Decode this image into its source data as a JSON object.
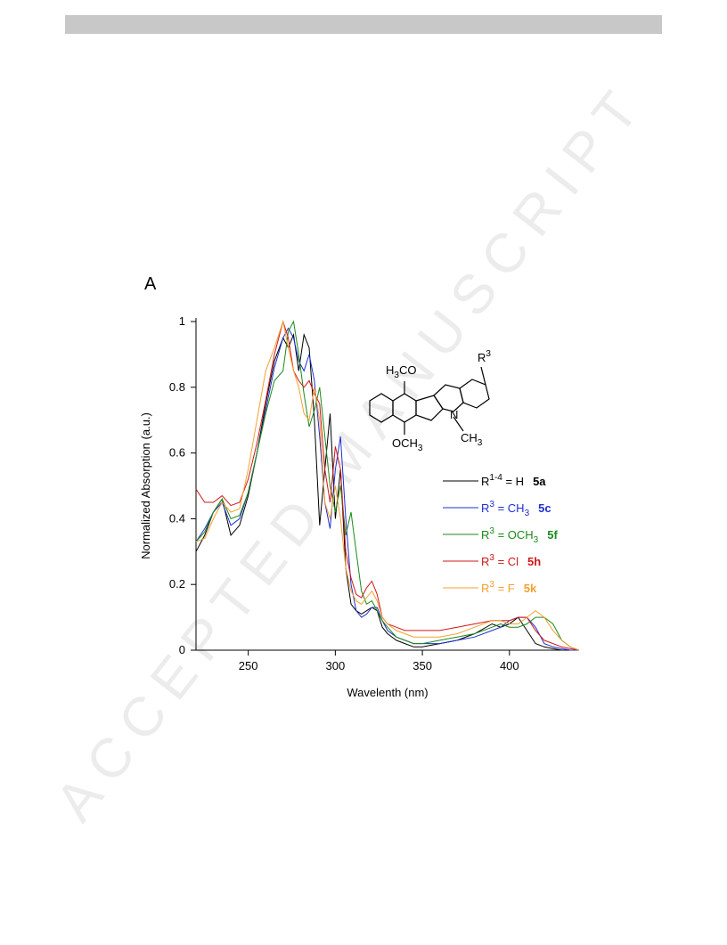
{
  "watermark": "ACCEPTED MANUSCRIPT",
  "chart_data": {
    "type": "line",
    "panel": "A",
    "x_label": "Wavelenth (nm)",
    "y_label": "Normalized Absorption (a.u.)",
    "xlim": [
      220,
      440
    ],
    "xticks": [
      250,
      300,
      350,
      400
    ],
    "ylim": [
      0,
      1
    ],
    "yticks": [
      0,
      0.2,
      0.4,
      0.6,
      0.8,
      1
    ],
    "x": [
      220,
      225,
      230,
      235,
      240,
      245,
      250,
      255,
      260,
      265,
      270,
      273,
      276,
      279,
      282,
      285,
      288,
      291,
      294,
      297,
      300,
      303,
      306,
      309,
      312,
      315,
      318,
      321,
      324,
      327,
      330,
      335,
      340,
      345,
      350,
      360,
      370,
      380,
      390,
      395,
      400,
      405,
      410,
      415,
      420,
      425,
      430,
      435,
      440
    ],
    "series": [
      {
        "name": "R1-4 = H",
        "compound": "5a",
        "color": "#000000",
        "values": [
          0.3,
          0.35,
          0.42,
          0.46,
          0.35,
          0.38,
          0.47,
          0.6,
          0.75,
          0.88,
          0.95,
          0.92,
          0.96,
          0.85,
          0.96,
          0.92,
          0.7,
          0.38,
          0.55,
          0.72,
          0.4,
          0.55,
          0.25,
          0.14,
          0.12,
          0.11,
          0.12,
          0.13,
          0.12,
          0.07,
          0.05,
          0.03,
          0.02,
          0.01,
          0.01,
          0.02,
          0.03,
          0.05,
          0.08,
          0.07,
          0.08,
          0.1,
          0.06,
          0.02,
          0.01,
          0.005,
          0,
          0,
          0
        ]
      },
      {
        "name": "R3 = CH3",
        "compound": "5c",
        "color": "#1f2fd0",
        "values": [
          0.33,
          0.37,
          0.42,
          0.45,
          0.38,
          0.4,
          0.48,
          0.6,
          0.73,
          0.86,
          0.95,
          0.98,
          0.95,
          0.88,
          0.85,
          0.9,
          0.82,
          0.65,
          0.45,
          0.37,
          0.55,
          0.65,
          0.4,
          0.2,
          0.12,
          0.1,
          0.11,
          0.13,
          0.13,
          0.09,
          0.06,
          0.04,
          0.03,
          0.02,
          0.02,
          0.02,
          0.03,
          0.04,
          0.06,
          0.07,
          0.09,
          0.1,
          0.1,
          0.07,
          0.02,
          0.01,
          0.005,
          0,
          0
        ]
      },
      {
        "name": "R3 = OCH3",
        "compound": "5f",
        "color": "#1a8a1a",
        "values": [
          0.33,
          0.36,
          0.42,
          0.46,
          0.4,
          0.41,
          0.48,
          0.6,
          0.72,
          0.82,
          0.85,
          0.97,
          1.0,
          0.9,
          0.78,
          0.68,
          0.73,
          0.8,
          0.65,
          0.5,
          0.42,
          0.5,
          0.35,
          0.42,
          0.3,
          0.18,
          0.14,
          0.15,
          0.12,
          0.09,
          0.07,
          0.04,
          0.03,
          0.02,
          0.02,
          0.03,
          0.04,
          0.05,
          0.07,
          0.08,
          0.07,
          0.07,
          0.08,
          0.1,
          0.1,
          0.08,
          0.03,
          0.01,
          0
        ]
      },
      {
        "name": "R3 = Cl",
        "compound": "5h",
        "color": "#d01818",
        "values": [
          0.49,
          0.45,
          0.45,
          0.47,
          0.44,
          0.45,
          0.52,
          0.63,
          0.76,
          0.9,
          1.0,
          0.95,
          0.85,
          0.82,
          0.8,
          0.82,
          0.78,
          0.75,
          0.55,
          0.45,
          0.62,
          0.55,
          0.3,
          0.22,
          0.17,
          0.16,
          0.19,
          0.21,
          0.17,
          0.1,
          0.08,
          0.07,
          0.06,
          0.06,
          0.06,
          0.06,
          0.07,
          0.08,
          0.09,
          0.09,
          0.09,
          0.1,
          0.1,
          0.06,
          0.03,
          0.02,
          0.01,
          0.005,
          0
        ]
      },
      {
        "name": "R3 = F",
        "compound": "5k",
        "color": "#f5a030",
        "values": [
          0.33,
          0.34,
          0.4,
          0.45,
          0.42,
          0.43,
          0.55,
          0.7,
          0.85,
          0.92,
          1.0,
          0.92,
          0.85,
          0.8,
          0.72,
          0.7,
          0.8,
          0.7,
          0.45,
          0.4,
          0.5,
          0.4,
          0.25,
          0.18,
          0.15,
          0.14,
          0.16,
          0.18,
          0.15,
          0.1,
          0.08,
          0.06,
          0.05,
          0.04,
          0.04,
          0.04,
          0.05,
          0.07,
          0.09,
          0.09,
          0.08,
          0.08,
          0.1,
          0.12,
          0.1,
          0.06,
          0.03,
          0.01,
          0
        ]
      }
    ],
    "structure_labels": {
      "methoxy_top": "H3CO",
      "substituent": "R3",
      "nitrogen": "N",
      "methoxy_bottom": "OCH3",
      "n_methyl": "CH3"
    }
  }
}
